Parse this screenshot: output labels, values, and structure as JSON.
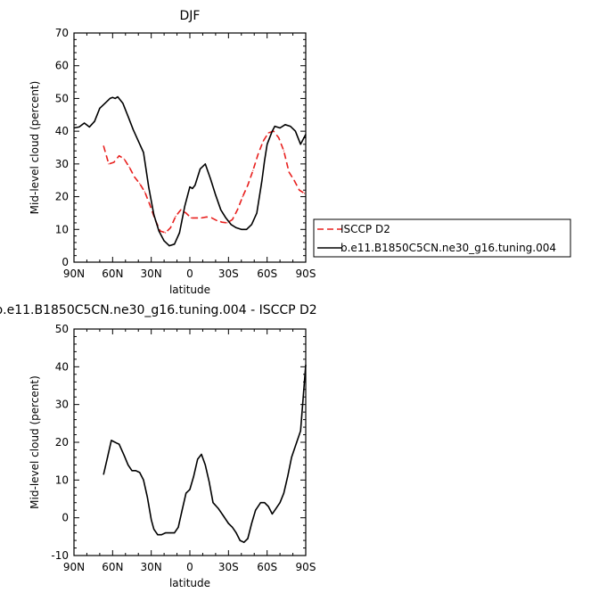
{
  "chart_data": [
    {
      "type": "line",
      "title": "DJF",
      "xlabel": "latitude",
      "ylabel": "Mid-level cloud (percent)",
      "xlim": [
        90,
        -90
      ],
      "ylim": [
        0,
        70
      ],
      "x_ticks": [
        90,
        60,
        30,
        0,
        -30,
        -60,
        -90
      ],
      "x_tick_labels": [
        "90N",
        "60N",
        "30N",
        "0",
        "30S",
        "60S",
        "90S"
      ],
      "y_ticks": [
        0,
        10,
        20,
        30,
        40,
        50,
        60,
        70
      ],
      "y_tick_labels": [
        "0",
        "10",
        "20",
        "30",
        "40",
        "50",
        "60",
        "70"
      ],
      "legend_position": "right",
      "series": [
        {
          "name": "ISCCP D2",
          "color": "#e8201e",
          "dash": "dashed",
          "x": [
            67,
            63,
            59,
            55,
            51,
            47,
            43,
            39,
            35,
            31,
            27,
            23,
            19,
            15,
            11,
            7,
            3,
            -1,
            -5,
            -9,
            -13,
            -17,
            -21,
            -25,
            -29,
            -33,
            -37,
            -41,
            -45,
            -49,
            -53,
            -57,
            -61,
            -65,
            -69,
            -73,
            -77,
            -81,
            -85,
            -89
          ],
          "values": [
            35.5,
            30,
            30.5,
            32.5,
            31.5,
            29,
            26,
            24,
            21.5,
            17.5,
            13,
            9.5,
            9,
            10.5,
            14,
            16,
            15,
            13.5,
            13.5,
            13.5,
            13.8,
            13.5,
            12.7,
            12.2,
            12,
            13,
            16,
            20,
            23.5,
            28,
            33,
            37,
            39.5,
            40,
            38,
            34,
            27.5,
            25,
            22,
            21
          ]
        },
        {
          "name": "b.e11.B1850C5CN.ne30_g16.tuning.004",
          "color": "#000000",
          "dash": "solid",
          "x": [
            90,
            86,
            82,
            78,
            74,
            70,
            66,
            62,
            60,
            58,
            56,
            52,
            48,
            44,
            40,
            36,
            32,
            28,
            24,
            20,
            16,
            12,
            8,
            4,
            0,
            -2,
            -4,
            -8,
            -12,
            -16,
            -20,
            -24,
            -28,
            -32,
            -36,
            -40,
            -44,
            -48,
            -52,
            -56,
            -58,
            -60,
            -64,
            -66,
            -70,
            -74,
            -78,
            -82,
            -86,
            -90
          ],
          "values": [
            41,
            41.3,
            42.5,
            41.3,
            43,
            47,
            48.5,
            50,
            50.3,
            50,
            50.5,
            48.5,
            44.5,
            40.5,
            37,
            33.5,
            23,
            14.5,
            9.5,
            6.5,
            5,
            5.5,
            9,
            17,
            23,
            22.5,
            23.5,
            28.5,
            30,
            25.5,
            20.5,
            16,
            13.5,
            11.5,
            10.5,
            10,
            10,
            11.5,
            15,
            25,
            31,
            36,
            40,
            41.5,
            41,
            42,
            41.5,
            40,
            36,
            39
          ]
        }
      ]
    },
    {
      "type": "line",
      "title": "b.e11.B1850C5CN.ne30_g16.tuning.004 - ISCCP D2",
      "xlabel": "latitude",
      "ylabel": "Mid-level cloud (percent)",
      "xlim": [
        90,
        -90
      ],
      "ylim": [
        -10,
        50
      ],
      "x_ticks": [
        90,
        60,
        30,
        0,
        -30,
        -60,
        -90
      ],
      "x_tick_labels": [
        "90N",
        "60N",
        "30N",
        "0",
        "30S",
        "60S",
        "90S"
      ],
      "y_ticks": [
        -10,
        0,
        10,
        20,
        30,
        40,
        50
      ],
      "y_tick_labels": [
        "-10",
        "0",
        "10",
        "20",
        "30",
        "40",
        "50"
      ],
      "series": [
        {
          "color": "#000000",
          "dash": "solid",
          "x": [
            67,
            64,
            61,
            57,
            55,
            51,
            48,
            45,
            42,
            39,
            36,
            33,
            30,
            28,
            25,
            22,
            19,
            15,
            12,
            9,
            6,
            3,
            0,
            -3,
            -6,
            -9,
            -12,
            -15,
            -18,
            -22,
            -26,
            -30,
            -33,
            -36,
            -39,
            -42,
            -45,
            -48,
            -51,
            -55,
            -58,
            -61,
            -64,
            -67,
            -70,
            -73,
            -76,
            -79,
            -82,
            -86,
            -90
          ],
          "values": [
            11.5,
            16,
            20.5,
            19.8,
            19.5,
            16.5,
            14,
            12.5,
            12.5,
            12,
            10,
            5.5,
            -0.5,
            -3,
            -4.5,
            -4.5,
            -4,
            -4,
            -4,
            -2.5,
            2,
            6.5,
            7.5,
            11,
            15.5,
            16.8,
            14,
            9.5,
            4,
            2.5,
            0.5,
            -1.5,
            -2.5,
            -4,
            -6,
            -6.5,
            -5.5,
            -1.5,
            2,
            4,
            4,
            3,
            1,
            2.5,
            4,
            6.5,
            11,
            16,
            19,
            23,
            40.5
          ]
        }
      ]
    }
  ]
}
